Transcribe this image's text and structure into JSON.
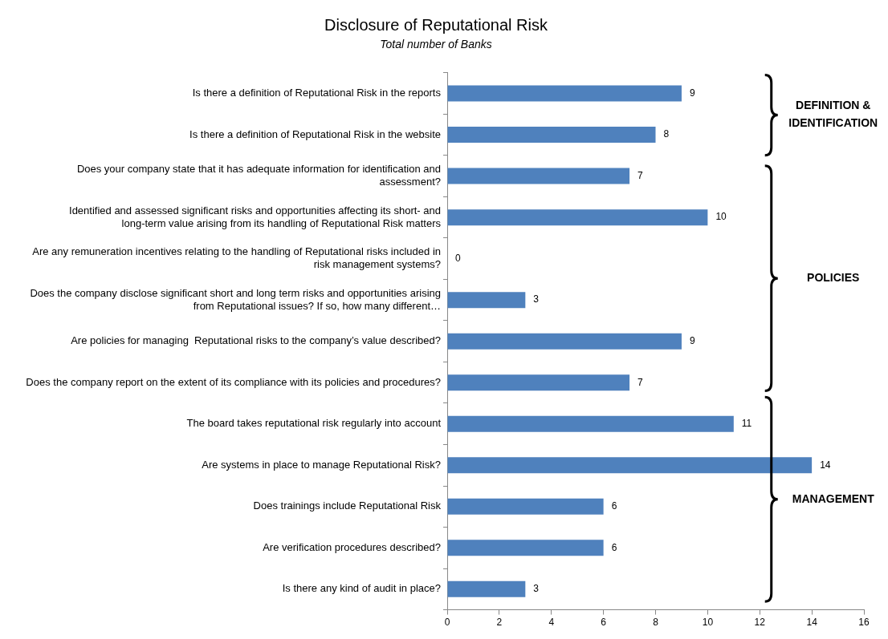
{
  "chart_data": {
    "type": "bar",
    "orientation": "horizontal",
    "title": "Disclosure of Reputational Risk",
    "subtitle": "Total number of Banks",
    "categories": [
      "Is there a definition of Reputational Risk in the reports",
      "Is there a definition of Reputational Risk in the website",
      "Does your company state that it has adequate information for identification and assessment?",
      "Identified and assessed significant risks and opportunities affecting its short- and long-term value arising from its handling of Reputational Risk matters",
      "Are any remuneration incentives relating to the handling of Reputational risks included in risk management systems?",
      "Does the company disclose significant short and long term risks and opportunities arising from Reputational issues? If so, how many different…",
      "Are policies for managing  Reputational risks to the company’s value described?",
      "Does the company report on the extent of its compliance with its policies and procedures?",
      "The board takes reputational risk regularly into account",
      "Are systems in place to manage Reputational Risk?",
      "Does trainings include Reputational Risk",
      "Are verification procedures described?",
      "Is there any kind of audit in place?"
    ],
    "values": [
      9,
      8,
      7,
      10,
      0,
      3,
      9,
      7,
      11,
      14,
      6,
      6,
      3
    ],
    "color": "#4f81bd",
    "xlim": [
      0,
      16
    ],
    "xticks": [
      0,
      2,
      4,
      6,
      8,
      10,
      12,
      14,
      16
    ],
    "data_labels": true,
    "grid": false,
    "legend": false,
    "annotations": [
      "DEFINITION & IDENTIFICATION",
      "POLICIES",
      "MANAGEMENT"
    ]
  }
}
